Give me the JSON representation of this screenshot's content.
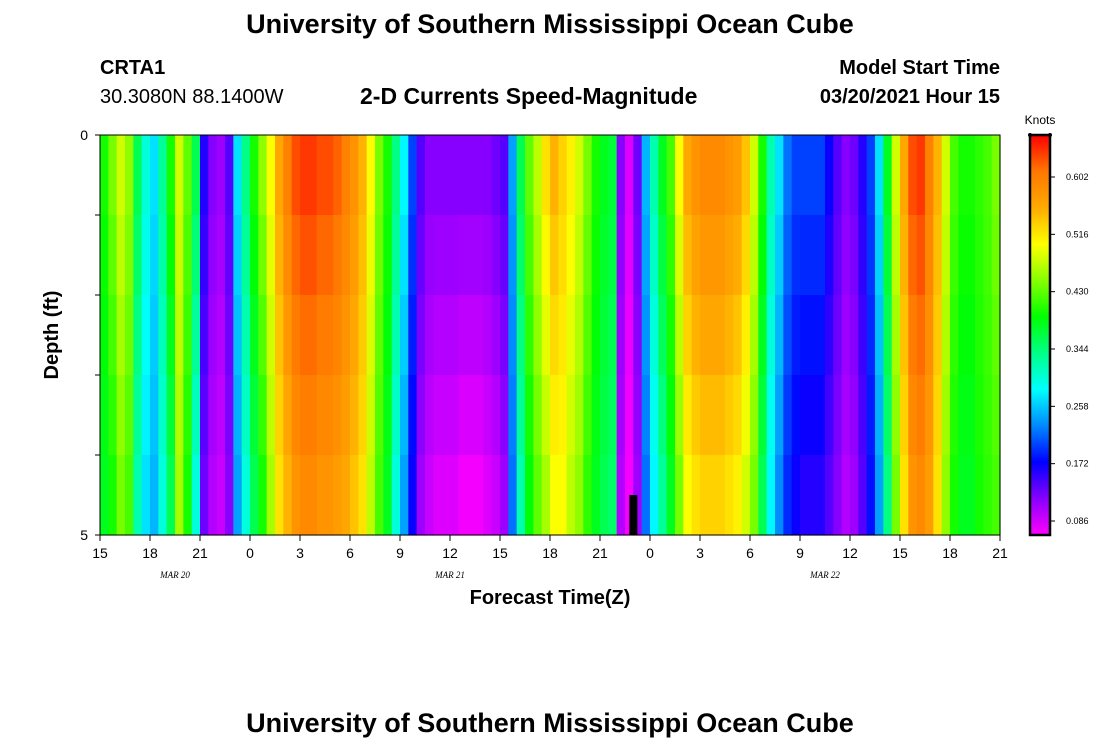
{
  "header": {
    "title": "University of Southern Mississippi Ocean Cube",
    "station_id": "CRTA1",
    "station_coords": "30.3080N 88.1400W",
    "plot_title": "2-D Currents Speed-Magnitude",
    "model_start_label": "Model Start Time",
    "model_start_value": "03/20/2021 Hour 15"
  },
  "footer": {
    "title": "University of Southern Mississippi Ocean Cube"
  },
  "chart_data": {
    "type": "heatmap",
    "title": "2-D Currents Speed-Magnitude",
    "xlabel": "Forecast Time(Z)",
    "ylabel": "Depth (ft)",
    "colorbar_label": "Knots",
    "colorbar_ticks": [
      "0.086",
      "0.172",
      "0.258",
      "0.344",
      "0.430",
      "0.516",
      "0.602"
    ],
    "colorbar_tick_values": [
      0.086,
      0.172,
      0.258,
      0.344,
      0.43,
      0.516,
      0.602
    ],
    "colorbar_range": [
      0.065,
      0.665
    ],
    "colors": [
      "#ff00ff",
      "#8800ff",
      "#0000ff",
      "#0088ff",
      "#00ffff",
      "#00ff88",
      "#00ff00",
      "#88ff00",
      "#ffff00",
      "#ffaa00",
      "#ff7700",
      "#ff0000"
    ],
    "x_range_hours": [
      0,
      54
    ],
    "x_ticks": [
      "15",
      "18",
      "21",
      "0",
      "3",
      "6",
      "9",
      "12",
      "15",
      "18",
      "21",
      "0",
      "3",
      "6",
      "9",
      "12",
      "15",
      "18",
      "21"
    ],
    "x_tick_hours": [
      0,
      3,
      6,
      9,
      12,
      15,
      18,
      21,
      24,
      27,
      30,
      33,
      36,
      39,
      42,
      45,
      48,
      51,
      54
    ],
    "date_labels": [
      "MAR 20",
      "MAR 21",
      "MAR 22"
    ],
    "date_label_hours": [
      4.5,
      21,
      43.5
    ],
    "y_range": [
      0,
      5
    ],
    "y_ticks": [
      "0",
      "5"
    ],
    "y_tick_values": [
      0,
      5
    ],
    "depth_levels": [
      0,
      1,
      2,
      3,
      4,
      5
    ],
    "time_hours": [
      0,
      0.5,
      1,
      1.5,
      2,
      2.5,
      3,
      3.5,
      4,
      4.5,
      5,
      5.5,
      6,
      6.5,
      7,
      7.5,
      8,
      8.5,
      9,
      9.5,
      10,
      10.5,
      11,
      11.5,
      12,
      12.5,
      13,
      13.5,
      14,
      14.5,
      15,
      15.5,
      16,
      16.5,
      17,
      17.5,
      18,
      18.5,
      19,
      19.5,
      20,
      20.5,
      21,
      21.5,
      22,
      22.5,
      23,
      23.5,
      24,
      24.5,
      25,
      25.5,
      26,
      26.5,
      27,
      27.5,
      28,
      28.5,
      29,
      29.5,
      30,
      30.5,
      31,
      31.5,
      32,
      32.5,
      33,
      33.5,
      34,
      34.5,
      35,
      35.5,
      36,
      36.5,
      37,
      37.5,
      38,
      38.5,
      39,
      39.5,
      40,
      40.5,
      41,
      41.5,
      42,
      42.5,
      43,
      43.5,
      44,
      44.5,
      45,
      45.5,
      46,
      46.5,
      47,
      47.5,
      48,
      48.5,
      49,
      49.5,
      50,
      50.5,
      51,
      51.5,
      52,
      52.5,
      53,
      53.5
    ],
    "surface_speed_knots": [
      0.4,
      0.44,
      0.48,
      0.45,
      0.36,
      0.3,
      0.27,
      0.33,
      0.4,
      0.48,
      0.43,
      0.36,
      0.16,
      0.12,
      0.11,
      0.14,
      0.27,
      0.34,
      0.4,
      0.45,
      0.5,
      0.56,
      0.6,
      0.63,
      0.64,
      0.64,
      0.63,
      0.63,
      0.62,
      0.6,
      0.58,
      0.55,
      0.5,
      0.44,
      0.4,
      0.34,
      0.28,
      0.2,
      0.14,
      0.12,
      0.12,
      0.12,
      0.12,
      0.12,
      0.12,
      0.12,
      0.12,
      0.13,
      0.14,
      0.24,
      0.36,
      0.43,
      0.47,
      0.52,
      0.55,
      0.53,
      0.51,
      0.48,
      0.44,
      0.4,
      0.38,
      0.37,
      0.12,
      0.08,
      0.13,
      0.25,
      0.32,
      0.38,
      0.42,
      0.5,
      0.56,
      0.58,
      0.59,
      0.59,
      0.59,
      0.58,
      0.57,
      0.54,
      0.48,
      0.4,
      0.32,
      0.27,
      0.22,
      0.2,
      0.2,
      0.2,
      0.2,
      0.17,
      0.14,
      0.12,
      0.13,
      0.16,
      0.2,
      0.27,
      0.38,
      0.48,
      0.56,
      0.63,
      0.64,
      0.6,
      0.55,
      0.48,
      0.42,
      0.4,
      0.4,
      0.41,
      0.42,
      0.44
    ],
    "bottom_speed_knots": [
      0.38,
      0.4,
      0.44,
      0.42,
      0.32,
      0.27,
      0.25,
      0.3,
      0.36,
      0.46,
      0.4,
      0.3,
      0.13,
      0.1,
      0.09,
      0.12,
      0.24,
      0.3,
      0.36,
      0.4,
      0.46,
      0.52,
      0.55,
      0.58,
      0.59,
      0.59,
      0.58,
      0.58,
      0.57,
      0.56,
      0.54,
      0.52,
      0.47,
      0.42,
      0.38,
      0.3,
      0.24,
      0.17,
      0.11,
      0.09,
      0.08,
      0.08,
      0.08,
      0.07,
      0.07,
      0.07,
      0.08,
      0.09,
      0.11,
      0.22,
      0.32,
      0.39,
      0.43,
      0.46,
      0.5,
      0.5,
      0.47,
      0.45,
      0.41,
      0.38,
      0.36,
      0.35,
      0.1,
      0.07,
      0.11,
      0.22,
      0.28,
      0.33,
      0.38,
      0.44,
      0.5,
      0.52,
      0.53,
      0.53,
      0.53,
      0.52,
      0.51,
      0.48,
      0.44,
      0.36,
      0.28,
      0.23,
      0.19,
      0.17,
      0.16,
      0.16,
      0.16,
      0.14,
      0.12,
      0.1,
      0.11,
      0.14,
      0.18,
      0.24,
      0.34,
      0.44,
      0.52,
      0.58,
      0.59,
      0.57,
      0.52,
      0.45,
      0.4,
      0.38,
      0.38,
      0.4,
      0.41,
      0.42
    ],
    "missing_data": [
      {
        "time_hours": 32,
        "depth_from": 4.5,
        "depth_to": 5
      }
    ]
  }
}
